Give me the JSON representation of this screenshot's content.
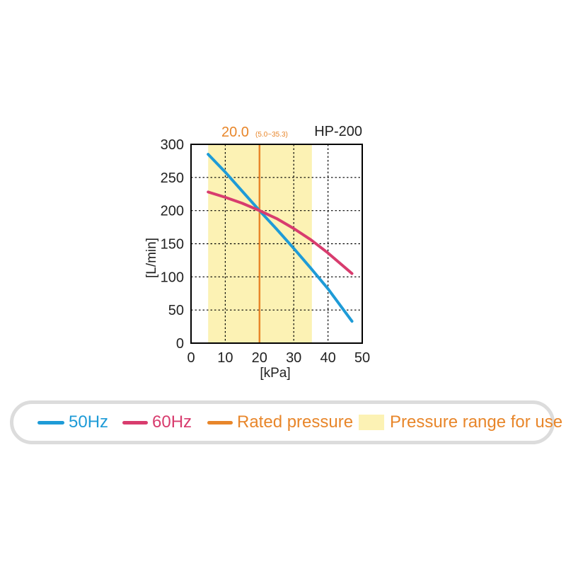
{
  "chart_data": {
    "type": "line",
    "title": "HP-200",
    "xlabel": "[kPa]",
    "ylabel": "[L/min]",
    "xlim": [
      0,
      50
    ],
    "ylim": [
      0,
      300
    ],
    "x_ticks": [
      0,
      10,
      20,
      30,
      40,
      50
    ],
    "y_ticks": [
      0,
      50,
      100,
      150,
      200,
      250,
      300
    ],
    "grid": true,
    "series": [
      {
        "name": "50Hz",
        "color": "#1e9bd7",
        "x": [
          5,
          10,
          15,
          20,
          25,
          30,
          35,
          40,
          47
        ],
        "y": [
          285,
          258,
          229,
          200,
          172,
          143,
          113,
          82,
          33
        ]
      },
      {
        "name": "60Hz",
        "color": "#d83c6e",
        "x": [
          5,
          10,
          15,
          20,
          25,
          30,
          35,
          40,
          47
        ],
        "y": [
          228,
          220,
          211,
          200,
          188,
          173,
          156,
          136,
          105
        ]
      }
    ],
    "rated_pressure": {
      "value": 20.0,
      "label": "20.0",
      "color": "#e8862a"
    },
    "pressure_range": {
      "min": 5.0,
      "max": 35.3,
      "label": "(5.0~35.3)",
      "color": "#fcf2b4"
    },
    "legend": [
      {
        "label": "50Hz",
        "kind": "line",
        "color": "#1e9bd7"
      },
      {
        "label": "60Hz",
        "kind": "line",
        "color": "#d83c6e"
      },
      {
        "label": "Rated pressure",
        "kind": "line",
        "color": "#e8862a"
      },
      {
        "label": "Pressure range for use",
        "kind": "rect",
        "color": "#fcf2b4"
      }
    ],
    "legend_position": "bottom"
  }
}
